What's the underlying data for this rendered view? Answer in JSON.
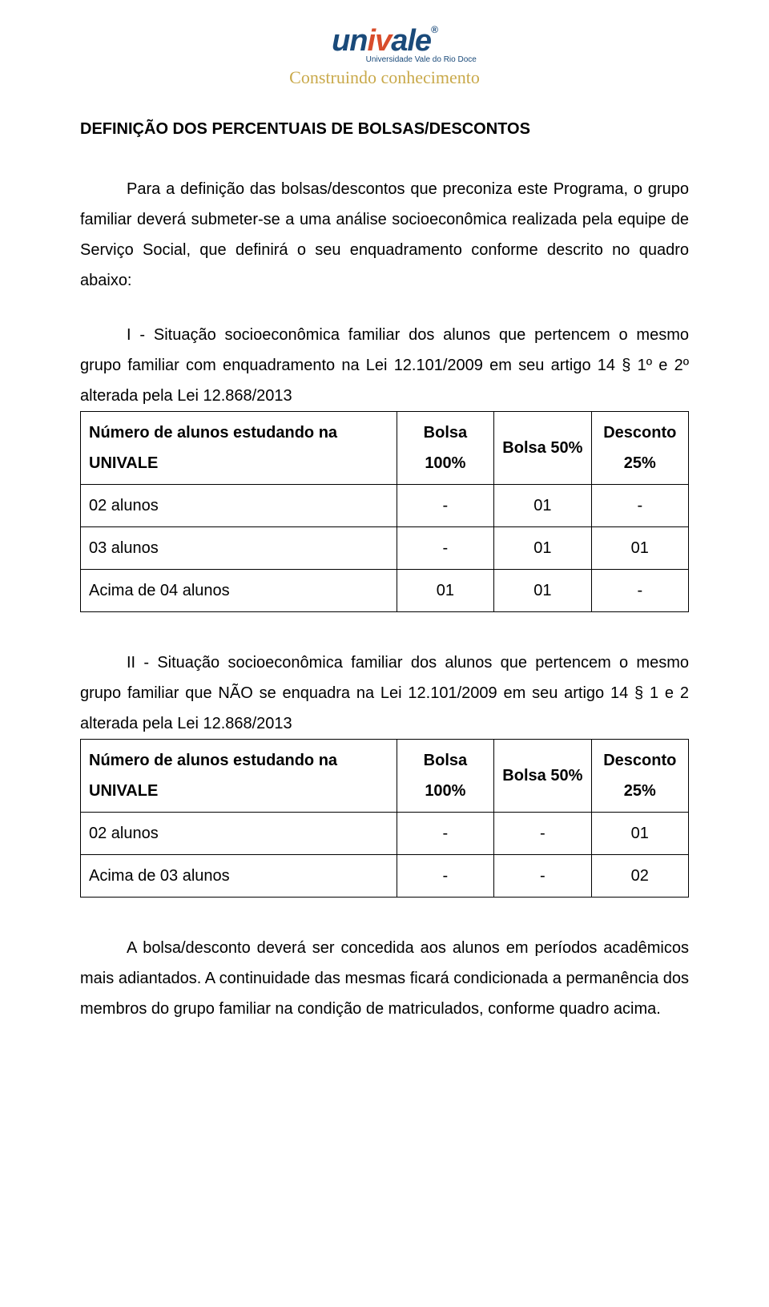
{
  "logo": {
    "name_text": "univale",
    "registered": "®",
    "subtitle": "Universidade Vale do Rio Doce",
    "tagline": "Construindo conhecimento",
    "colors": {
      "blue": "#1a4a7a",
      "orange": "#d84c2b",
      "gold": "#c9a94a"
    }
  },
  "title": "DEFINIÇÃO DOS PERCENTUAIS DE BOLSAS/DESCONTOS",
  "intro": "Para a definição das bolsas/descontos que preconiza este Programa, o grupo familiar deverá submeter-se a uma análise socioeconômica realizada pela equipe de Serviço Social, que definirá o seu enquadramento conforme descrito no quadro abaixo:",
  "section1_lead": "I - Situação socioeconômica familiar dos alunos que pertencem o mesmo grupo familiar com enquadramento na Lei 12.101/2009 em seu artigo 14 § 1º e 2º alterada pela Lei 12.868/2013",
  "table1": {
    "columns": [
      "Número de alunos estudando na UNIVALE",
      "Bolsa 100%",
      "Bolsa 50%",
      "Desconto 25%"
    ],
    "rows": [
      [
        "02 alunos",
        "-",
        "01",
        "-"
      ],
      [
        "03 alunos",
        "-",
        "01",
        "01"
      ],
      [
        "Acima de 04 alunos",
        "01",
        "01",
        "-"
      ]
    ]
  },
  "section2_lead": "II - Situação socioeconômica familiar dos alunos que pertencem o mesmo grupo familiar que NÃO se enquadra na Lei 12.101/2009 em seu artigo 14 § 1 e 2 alterada pela Lei 12.868/2013",
  "table2": {
    "columns": [
      "Número de alunos estudando na UNIVALE",
      "Bolsa 100%",
      "Bolsa 50%",
      "Desconto 25%"
    ],
    "rows": [
      [
        "02 alunos",
        "-",
        "-",
        "01"
      ],
      [
        "Acima de 03 alunos",
        "-",
        "-",
        "02"
      ]
    ]
  },
  "closing": "A bolsa/desconto deverá ser concedida aos alunos em períodos acadêmicos mais adiantados. A continuidade das mesmas ficará condicionada a permanência dos membros do grupo familiar na condição de matriculados, conforme quadro acima."
}
